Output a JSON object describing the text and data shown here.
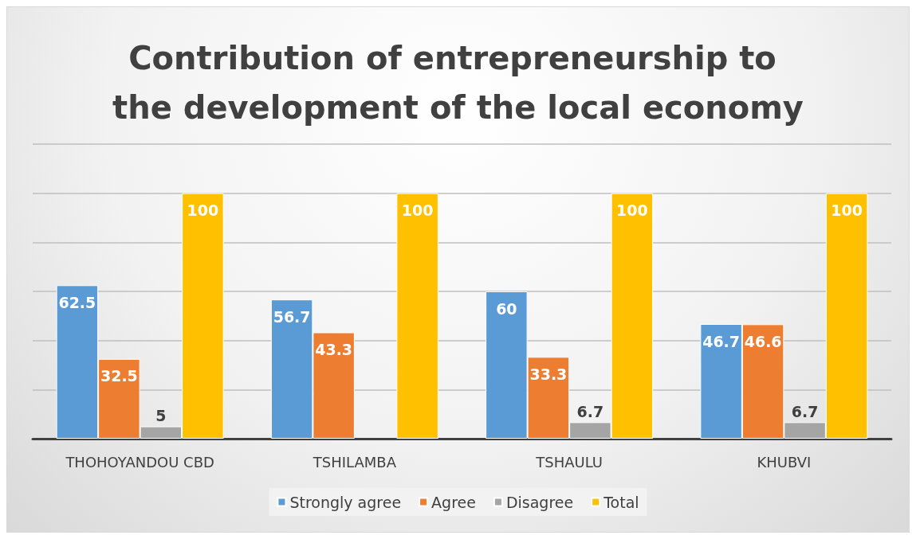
{
  "chart_data": {
    "type": "bar",
    "title": "Contribution of entrepreneurship to the development of the local economy",
    "categories": [
      "THOHOYANDOU CBD",
      "TSHILAMBA",
      "TSHAULU",
      "KHUBVI"
    ],
    "series": [
      {
        "name": "Strongly agree",
        "color": "#5b9bd5",
        "values": [
          62.5,
          56.7,
          60,
          46.7
        ],
        "value_labels": [
          "62.5",
          "56.7",
          "60",
          "46.7"
        ]
      },
      {
        "name": "Agree",
        "color": "#ed7d31",
        "values": [
          32.5,
          43.3,
          33.3,
          46.6
        ],
        "value_labels": [
          "32.5",
          "43.3",
          "33.3",
          "46.6"
        ]
      },
      {
        "name": "Disagree",
        "color": "#a5a5a5",
        "values": [
          5,
          0,
          6.7,
          6.7
        ],
        "value_labels": [
          "5",
          null,
          "6.7",
          "6.7"
        ]
      },
      {
        "name": "Total",
        "color": "#ffc000",
        "values": [
          100,
          100,
          100,
          100
        ],
        "value_labels": [
          "100",
          "100",
          "100",
          "100"
        ]
      }
    ],
    "ylim": [
      0,
      120
    ],
    "yticks": [
      0,
      20,
      40,
      60,
      80,
      100,
      120
    ],
    "grid": "y",
    "tick_labels": "x",
    "legend": "bottom"
  }
}
